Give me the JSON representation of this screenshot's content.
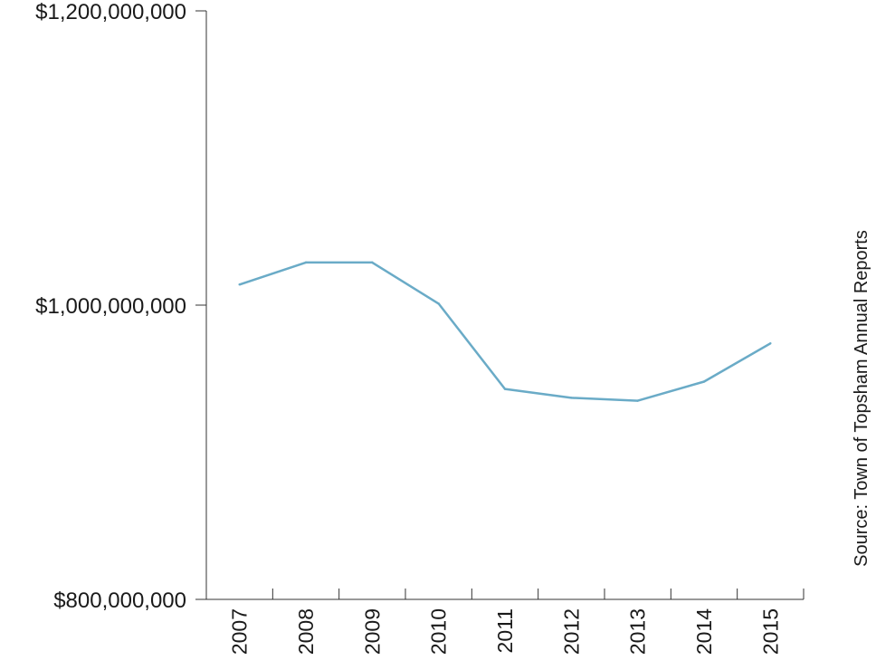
{
  "chart_data": {
    "type": "line",
    "categories": [
      "2007",
      "2008",
      "2009",
      "2010",
      "2011",
      "2012",
      "2013",
      "2014",
      "2015"
    ],
    "series": [
      {
        "values": [
          1014000000,
          1029000000,
          1029000000,
          1001000000,
          943000000,
          937000000,
          935000000,
          948000000,
          974000000
        ]
      }
    ],
    "ylim": [
      800000000,
      1200000000
    ],
    "yticks": [
      800000000,
      1000000000,
      1200000000
    ],
    "ytick_labels": [
      "$800,000,000",
      "$1,000,000,000",
      "$1,200,000,000"
    ],
    "source": "Source: Town of Topsham Annual Reports",
    "line_color": "#6aabc7",
    "grid": false
  }
}
